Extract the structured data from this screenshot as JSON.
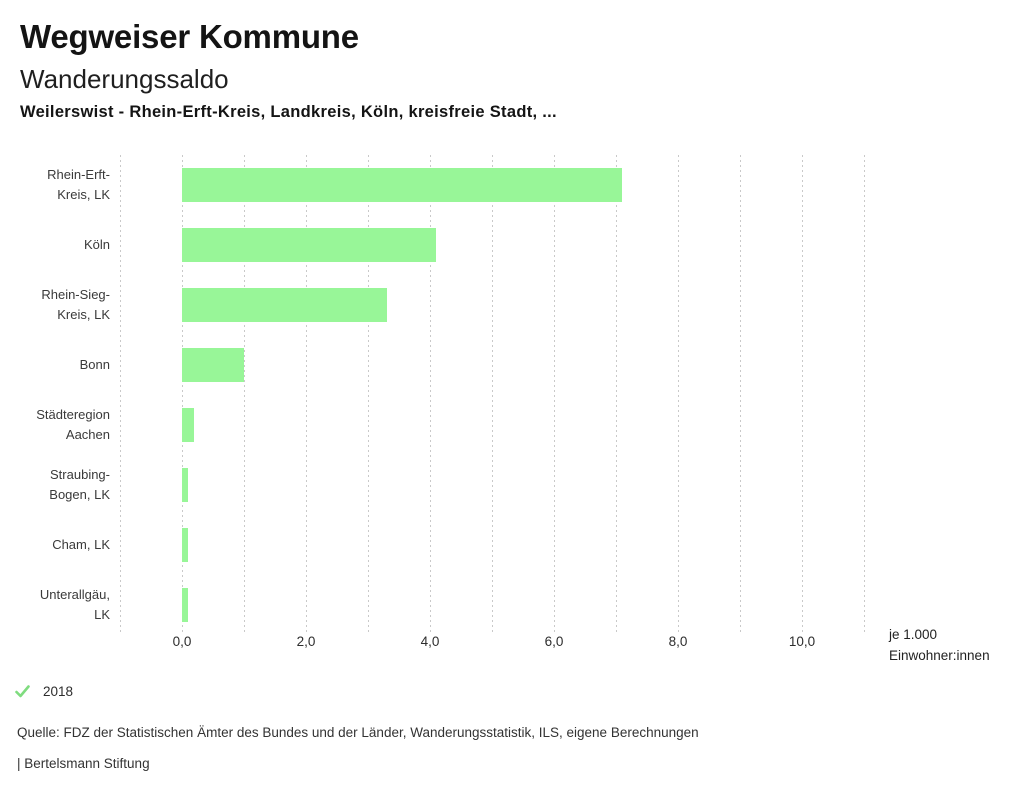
{
  "header": {
    "app_title": "Wegweiser Kommune",
    "chart_title": "Wanderungssaldo",
    "subtitle": "Weilerswist - Rhein-Erft-Kreis, Landkreis, Köln, kreisfreie Stadt, ..."
  },
  "chart_data": {
    "type": "bar",
    "orientation": "horizontal",
    "title": "Wanderungssaldo",
    "subtitle": "Weilerswist - Rhein-Erft-Kreis, Landkreis, Köln, kreisfreie Stadt, ...",
    "categories": [
      "Rhein-Erft-Kreis, LK",
      "Köln",
      "Rhein-Sieg-Kreis, LK",
      "Bonn",
      "Städteregion Aachen",
      "Straubing-Bogen, LK",
      "Cham, LK",
      "Unterallgäu, LK"
    ],
    "category_lines": [
      [
        "Rhein-Erft-",
        "Kreis, LK"
      ],
      [
        "Köln"
      ],
      [
        "Rhein-Sieg-",
        "Kreis, LK"
      ],
      [
        "Bonn"
      ],
      [
        "Städteregion",
        "Aachen"
      ],
      [
        "Straubing-",
        "Bogen, LK"
      ],
      [
        "Cham, LK"
      ],
      [
        "Unterallgäu,",
        "LK"
      ]
    ],
    "series": [
      {
        "name": "2018",
        "values": [
          7.1,
          4.1,
          3.3,
          1.0,
          0.2,
          0.1,
          0.1,
          0.1
        ]
      }
    ],
    "xlabel": "je 1.000 Einwohner:innen",
    "unit_label_lines": [
      "je 1.000",
      "Einwohner:innen"
    ],
    "x_ticks": [
      "0,0",
      "2,0",
      "4,0",
      "6,0",
      "8,0",
      "10,0"
    ],
    "x_tick_values": [
      0,
      2,
      4,
      6,
      8,
      10
    ],
    "xlim": [
      -1,
      11
    ],
    "grid_step": 1,
    "grid": true,
    "bar_color": "#98f698",
    "grid_color": "#c9c9c9",
    "legend_position": "bottom-left"
  },
  "legend": {
    "year_label": "2018",
    "check_color": "#7fdc7f"
  },
  "footer": {
    "source": "Quelle: FDZ der Statistischen Ämter des Bundes und der Länder, Wanderungsstatistik, ILS, eigene Berechnungen",
    "attribution": "| Bertelsmann Stiftung"
  }
}
